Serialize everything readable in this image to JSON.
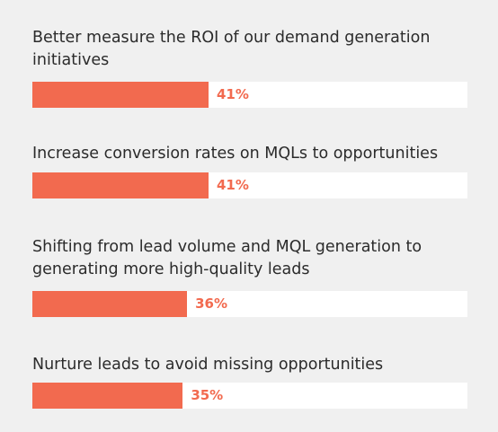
{
  "colors": {
    "background": "#f0f0f0",
    "bar_fill": "#f26a4f",
    "bar_track": "#ffffff",
    "label_text": "#2b2b2b",
    "value_text": "#f26a4f"
  },
  "chart_data": {
    "type": "bar",
    "orientation": "horizontal",
    "categories": [
      "Better measure the ROI of our demand generation initiatives",
      "Increase conversion rates on MQLs to opportunities",
      "Shifting from lead volume and MQL generation to generating more high-quality leads",
      "Nurture leads to avoid missing opportunities"
    ],
    "values": [
      41,
      41,
      36,
      35
    ],
    "value_labels": [
      "41%",
      "41%",
      "36%",
      "35%"
    ],
    "xlim": [
      0,
      100
    ],
    "grid": false,
    "legend": "none"
  }
}
